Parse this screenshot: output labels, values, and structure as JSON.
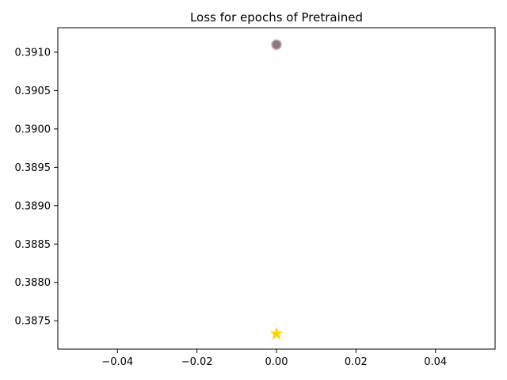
{
  "chart_data": {
    "type": "scatter",
    "title": "Loss for epochs of Pretrained",
    "xlabel": "",
    "ylabel": "",
    "xlim": [
      -0.055,
      0.055
    ],
    "ylim": [
      0.38713,
      0.39132
    ],
    "grid": false,
    "x_ticks": [
      {
        "value": -0.04,
        "label": "−0.04"
      },
      {
        "value": -0.02,
        "label": "−0.02"
      },
      {
        "value": 0.0,
        "label": "0.00"
      },
      {
        "value": 0.02,
        "label": "0.02"
      },
      {
        "value": 0.04,
        "label": "0.04"
      }
    ],
    "y_ticks": [
      {
        "value": 0.3875,
        "label": "0.3875"
      },
      {
        "value": 0.388,
        "label": "0.3880"
      },
      {
        "value": 0.3885,
        "label": "0.3885"
      },
      {
        "value": 0.389,
        "label": "0.3890"
      },
      {
        "value": 0.3895,
        "label": "0.3895"
      },
      {
        "value": 0.39,
        "label": "0.3900"
      },
      {
        "value": 0.3905,
        "label": "0.3905"
      },
      {
        "value": 0.391,
        "label": "0.3910"
      }
    ],
    "series": [
      {
        "marker": "circle",
        "color": "#7f7f7f",
        "edge_color": "#e7a3b0",
        "points": [
          {
            "x": 0.0,
            "y": 0.3911
          }
        ]
      },
      {
        "marker": "star",
        "color": "#ffd700",
        "edge_color": "#ffd700",
        "points": [
          {
            "x": 0.0,
            "y": 0.38733
          }
        ]
      }
    ]
  }
}
